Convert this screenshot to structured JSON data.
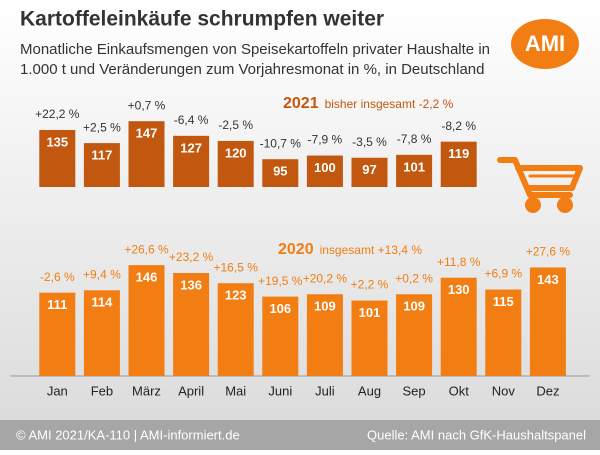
{
  "chart_data": {
    "type": "bar",
    "title": "Kartoffeleinkäufe schrumpfen weiter",
    "subtitle": [
      "Monatliche Einkaufsmengen von Speisekartoffeln privater Haushalte in",
      "1.000 t und Veränderungen zum Vorjahresmonat in %, in Deutschland"
    ],
    "logo": "AMI",
    "categories": [
      "Jan",
      "Feb",
      "März",
      "April",
      "Mai",
      "Juni",
      "Juli",
      "Aug",
      "Sep",
      "Okt",
      "Nov",
      "Dez"
    ],
    "series": [
      {
        "name": "2021",
        "note": "bisher insgesamt -2,2 %",
        "color": "#c2570f",
        "ylim": [
          57,
          150
        ],
        "values": [
          135,
          117,
          147,
          127,
          120,
          95,
          100,
          97,
          101,
          119,
          null,
          null
        ],
        "changes": [
          "+22,2 %",
          "+2,5 %",
          "+0,7 %",
          "-6,4 %",
          "-2,5 %",
          "-10,7 %",
          "-7,9 %",
          "-3,5 %",
          "-7,8 %",
          "-8,2 %",
          null,
          null
        ]
      },
      {
        "name": "2020",
        "note": "insgesamt +13,4 %",
        "color": "#f27d12",
        "ylim": [
          5,
          150
        ],
        "values": [
          111,
          114,
          146,
          136,
          123,
          106,
          109,
          101,
          109,
          130,
          115,
          143
        ],
        "changes": [
          "-2,6 %",
          "+9,4 %",
          "+26,6 %",
          "+23,2 %",
          "+16,5 %",
          "+19,5 %",
          "+20,2 %",
          "+2,2 %",
          "+0,2 %",
          "+11,8 %",
          "+6,9 %",
          "+27,6 %"
        ]
      }
    ],
    "footer": {
      "left": "© AMI 2021/KA-110 | AMI-informiert.de",
      "right": "Quelle: AMI nach GfK-Haushaltspanel"
    }
  }
}
